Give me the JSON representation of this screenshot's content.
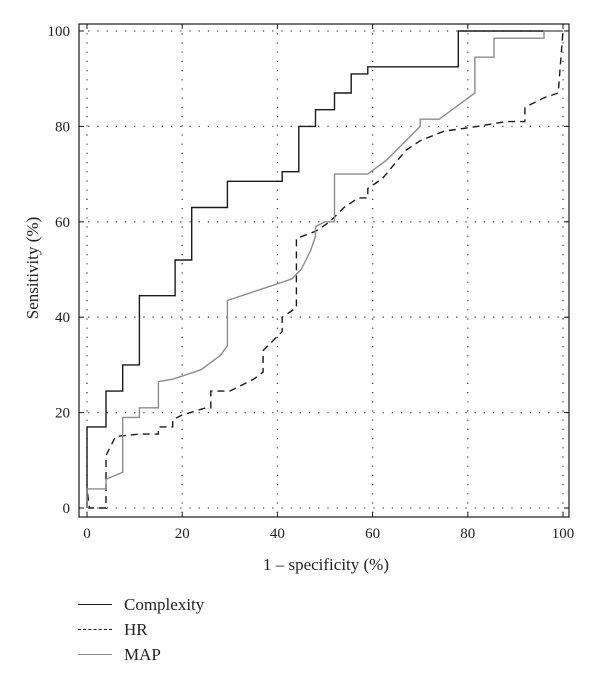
{
  "chart_data": {
    "type": "line",
    "xlabel": "1 – specificity (%)",
    "ylabel": "Sensitivity (%)",
    "xlim": [
      0,
      100
    ],
    "ylim": [
      0,
      100
    ],
    "xticks": [
      0,
      20,
      40,
      60,
      80,
      100
    ],
    "yticks": [
      0,
      20,
      40,
      60,
      80,
      100
    ],
    "grid": true,
    "legend_position": "below",
    "series": [
      {
        "name": "Complexity",
        "color": "#1a1a1a",
        "dash": "solid",
        "points": [
          [
            0,
            0
          ],
          [
            0,
            17
          ],
          [
            4,
            17
          ],
          [
            4,
            24.5
          ],
          [
            7.5,
            24.5
          ],
          [
            7.5,
            30
          ],
          [
            11,
            30
          ],
          [
            11,
            44.5
          ],
          [
            18.5,
            44.5
          ],
          [
            18.5,
            52
          ],
          [
            22,
            52
          ],
          [
            22,
            63
          ],
          [
            29.5,
            63
          ],
          [
            29.5,
            68.5
          ],
          [
            41,
            68.5
          ],
          [
            41,
            70.5
          ],
          [
            44.5,
            70.5
          ],
          [
            44.5,
            80
          ],
          [
            48,
            80
          ],
          [
            48,
            83.5
          ],
          [
            52,
            83.5
          ],
          [
            52,
            87
          ],
          [
            55.5,
            87
          ],
          [
            55.5,
            91
          ],
          [
            59,
            91
          ],
          [
            59,
            92.5
          ],
          [
            78,
            92.5
          ],
          [
            78,
            100
          ],
          [
            100,
            100
          ]
        ]
      },
      {
        "name": "HR",
        "color": "#1a1a1a",
        "dash": "dashed",
        "points": [
          [
            0,
            0
          ],
          [
            0,
            4
          ],
          [
            0.5,
            0
          ],
          [
            4,
            0
          ],
          [
            4,
            11
          ],
          [
            6,
            15
          ],
          [
            11,
            15.5
          ],
          [
            15,
            15.5
          ],
          [
            15,
            17
          ],
          [
            18,
            17
          ],
          [
            18,
            18.5
          ],
          [
            20,
            19.5
          ],
          [
            25,
            21
          ],
          [
            26,
            21
          ],
          [
            26,
            24.5
          ],
          [
            30,
            24.5
          ],
          [
            35,
            27
          ],
          [
            37,
            28.5
          ],
          [
            37,
            33
          ],
          [
            39,
            35
          ],
          [
            41,
            37
          ],
          [
            41,
            40
          ],
          [
            44,
            42
          ],
          [
            44,
            56.5
          ],
          [
            48,
            58
          ],
          [
            51,
            60
          ],
          [
            54,
            63
          ],
          [
            57,
            65
          ],
          [
            59,
            65
          ],
          [
            59,
            67
          ],
          [
            62,
            69
          ],
          [
            67,
            75
          ],
          [
            70,
            77
          ],
          [
            75,
            79
          ],
          [
            82,
            80
          ],
          [
            88,
            81
          ],
          [
            92,
            81
          ],
          [
            92,
            84
          ],
          [
            96,
            86
          ],
          [
            99,
            87
          ],
          [
            100,
            100
          ]
        ]
      },
      {
        "name": "MAP",
        "color": "#8c8c8c",
        "dash": "solid",
        "points": [
          [
            0,
            0
          ],
          [
            0,
            4
          ],
          [
            4,
            4
          ],
          [
            4,
            6
          ],
          [
            7.5,
            7.5
          ],
          [
            7.5,
            19
          ],
          [
            11,
            19
          ],
          [
            11,
            21
          ],
          [
            15,
            21
          ],
          [
            15,
            26.5
          ],
          [
            18,
            27
          ],
          [
            21,
            28
          ],
          [
            24,
            29
          ],
          [
            28,
            32
          ],
          [
            29.5,
            34
          ],
          [
            29.5,
            43.5
          ],
          [
            37,
            46
          ],
          [
            43,
            48
          ],
          [
            45,
            50
          ],
          [
            47,
            54
          ],
          [
            48,
            57
          ],
          [
            48,
            59
          ],
          [
            50,
            60
          ],
          [
            52,
            60
          ],
          [
            52,
            70
          ],
          [
            59,
            70
          ],
          [
            63,
            73
          ],
          [
            67,
            77
          ],
          [
            70,
            80
          ],
          [
            70,
            81.5
          ],
          [
            74,
            81.5
          ],
          [
            81.5,
            87
          ],
          [
            81.5,
            94.5
          ],
          [
            85.5,
            94.5
          ],
          [
            85.5,
            98.5
          ],
          [
            96,
            98.5
          ],
          [
            96,
            100
          ],
          [
            100,
            100
          ]
        ]
      }
    ]
  }
}
